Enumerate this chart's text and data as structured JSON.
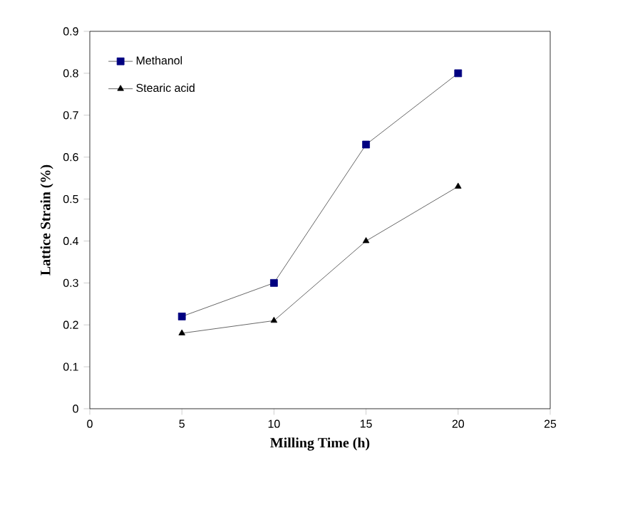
{
  "chart_data": {
    "type": "line",
    "xlabel": "Milling Time (h)",
    "ylabel": "Lattice Strain (%)",
    "x": [
      5,
      10,
      15,
      20
    ],
    "series": [
      {
        "name": "Methanol",
        "color": "#000080",
        "marker": "square",
        "values": [
          0.22,
          0.3,
          0.63,
          0.8
        ]
      },
      {
        "name": "Stearic acid",
        "color": "#000000",
        "marker": "triangle",
        "values": [
          0.18,
          0.21,
          0.4,
          0.53
        ]
      }
    ],
    "xlim": [
      0,
      25
    ],
    "xticks": [
      0,
      5,
      10,
      15,
      20,
      25
    ],
    "ylim": [
      0,
      0.9
    ],
    "yticks": [
      0,
      0.1,
      0.2,
      0.3,
      0.4,
      0.5,
      0.6,
      0.7,
      0.8,
      0.9
    ],
    "legend": "top left",
    "grid": false,
    "line_style": "solid"
  }
}
